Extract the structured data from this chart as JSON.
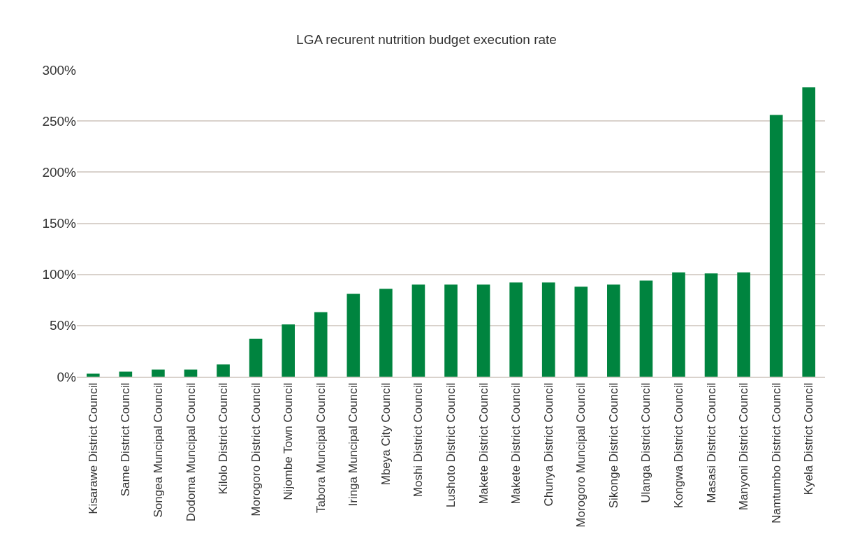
{
  "chart_data": {
    "type": "bar",
    "title": "LGA recurent nutrition budget execution rate",
    "categories": [
      "Kisarawe District Council",
      "Same District Council",
      "Songea Muncipal Council",
      "Dodoma Muncipal Council",
      "Kilolo District Council",
      "Morogoro District Council",
      "Nijombe Town Council",
      "Tabora Muncipal Council",
      "Iringa Muncipal Council",
      "Mbeya City Council",
      "Moshi District Council",
      "Lushoto District Council",
      "Makete District Council",
      "Makete District Council",
      "Chunya District Council",
      "Morogoro Muncipal Council",
      "Sikonge District Council",
      "Ulanga District Council",
      "Kongwa District Council",
      "Masasi District Council",
      "Manyoni District Council",
      "Namtumbo District Council",
      "Kyela District Council"
    ],
    "values": [
      3,
      5,
      7,
      7,
      12,
      37,
      51,
      63,
      81,
      86,
      90,
      90,
      90,
      92,
      92,
      88,
      90,
      94,
      102,
      101,
      102,
      256,
      283
    ],
    "color": "#00843f",
    "ylim": [
      0,
      300
    ],
    "yticks": [
      {
        "value": 0,
        "label": "0%"
      },
      {
        "value": 50,
        "label": "50%"
      },
      {
        "value": 100,
        "label": "100%"
      },
      {
        "value": 150,
        "label": "150%"
      },
      {
        "value": 200,
        "label": "200%"
      },
      {
        "value": 250,
        "label": "250%"
      },
      {
        "value": 300,
        "label": "300%"
      }
    ],
    "grid": "y"
  }
}
